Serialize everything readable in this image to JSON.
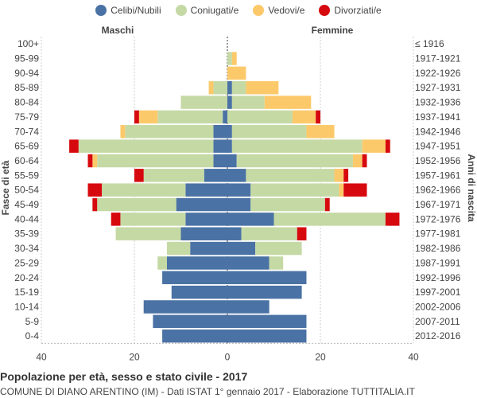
{
  "legend": [
    {
      "label": "Celibi/Nubili",
      "color": "#4a72a4"
    },
    {
      "label": "Coniugati/e",
      "color": "#c5d9a5"
    },
    {
      "label": "Vedovi/e",
      "color": "#fcc96a"
    },
    {
      "label": "Divorziati/e",
      "color": "#d6090e"
    }
  ],
  "labels": {
    "male": "Maschi",
    "female": "Femmine",
    "y_left": "Fasce di età",
    "y_right": "Anni di nascita"
  },
  "footer": {
    "title": "Popolazione per età, sesso e stato civile - 2017",
    "source": "COMUNE DI DIANO ARENTINO (IM) - Dati ISTAT 1° gennaio 2017 - Elaborazione TUTTITALIA.IT"
  },
  "chart_data": {
    "type": "bar",
    "orientation": "horizontal-population-pyramid",
    "age_groups": [
      "100+",
      "95-99",
      "90-94",
      "85-89",
      "80-84",
      "75-79",
      "70-74",
      "65-69",
      "60-64",
      "55-59",
      "50-54",
      "45-49",
      "40-44",
      "35-39",
      "30-34",
      "25-29",
      "20-24",
      "15-19",
      "10-14",
      "5-9",
      "0-4"
    ],
    "birth_years": [
      "≤ 1916",
      "1917-1921",
      "1922-1926",
      "1927-1931",
      "1932-1936",
      "1937-1941",
      "1942-1946",
      "1947-1951",
      "1952-1956",
      "1957-1961",
      "1962-1966",
      "1967-1971",
      "1972-1976",
      "1977-1981",
      "1982-1986",
      "1987-1991",
      "1992-1996",
      "1997-2001",
      "2002-2006",
      "2007-2011",
      "2012-2016"
    ],
    "x_ticks": [
      "40",
      "20",
      "0",
      "20",
      "40"
    ],
    "xlim": [
      -40,
      40
    ],
    "grid": true,
    "male": {
      "celibi": [
        0,
        0,
        0,
        0,
        0,
        1,
        3,
        3,
        3,
        5,
        9,
        11,
        9,
        10,
        8,
        13,
        14,
        12,
        18,
        16,
        14
      ],
      "coniugati": [
        0,
        0,
        0,
        3,
        10,
        14,
        19,
        29,
        25,
        13,
        18,
        17,
        14,
        14,
        5,
        2,
        0,
        0,
        0,
        0,
        0
      ],
      "vedovi": [
        0,
        0,
        0,
        1,
        0,
        4,
        1,
        0,
        1,
        0,
        0,
        0,
        0,
        0,
        0,
        0,
        0,
        0,
        0,
        0,
        0
      ],
      "divorziati": [
        0,
        0,
        0,
        0,
        0,
        1,
        0,
        2,
        1,
        2,
        3,
        1,
        2,
        0,
        0,
        0,
        0,
        0,
        0,
        0,
        0
      ]
    },
    "female": {
      "nubili": [
        0,
        0,
        0,
        1,
        1,
        0,
        1,
        1,
        2,
        4,
        5,
        5,
        10,
        3,
        6,
        9,
        17,
        16,
        9,
        17,
        17
      ],
      "coniugate": [
        0,
        1,
        0,
        3,
        7,
        14,
        16,
        28,
        25,
        19,
        19,
        16,
        24,
        12,
        10,
        3,
        0,
        0,
        0,
        0,
        0
      ],
      "vedove": [
        0,
        1,
        4,
        7,
        10,
        5,
        6,
        5,
        2,
        2,
        1,
        0,
        0,
        0,
        0,
        0,
        0,
        0,
        0,
        0,
        0
      ],
      "divorziate": [
        0,
        0,
        0,
        0,
        0,
        1,
        0,
        1,
        1,
        1,
        5,
        1,
        3,
        2,
        0,
        0,
        0,
        0,
        0,
        0,
        0
      ]
    }
  }
}
